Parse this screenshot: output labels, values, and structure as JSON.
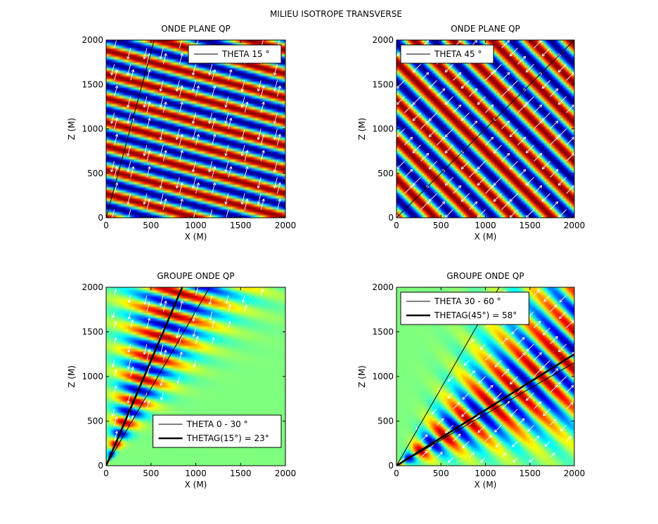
{
  "figure": {
    "suptitle": "MILIEU ISOTROPE TRANSVERSE"
  },
  "colormap": "jet",
  "chart_data": [
    {
      "type": "heatmap",
      "panel": "top-left",
      "title": "ONDE PLANE QP",
      "xlabel": "X (M)",
      "ylabel": "Z (M)",
      "xlim": [
        0,
        2000
      ],
      "ylim": [
        0,
        2000
      ],
      "xticks": [
        0,
        500,
        1000,
        1500,
        2000
      ],
      "yticks": [
        0,
        500,
        1000,
        1500,
        2000
      ],
      "field": {
        "kind": "plane",
        "theta_deg": 15,
        "wavelength": 260
      },
      "arrows": {
        "angle_deg": 75,
        "color": "#ffffff"
      },
      "lines": [
        {
          "theta_deg": 15,
          "width": 1
        }
      ],
      "legend": {
        "position": "top-right",
        "entries": [
          {
            "label": "THETA 15 °",
            "width": 1
          }
        ]
      }
    },
    {
      "type": "heatmap",
      "panel": "top-right",
      "title": "ONDE PLANE QP",
      "xlabel": "X (M)",
      "ylabel": "Z (M)",
      "xlim": [
        0,
        2000
      ],
      "ylim": [
        0,
        2000
      ],
      "xticks": [
        0,
        500,
        1000,
        1500,
        2000
      ],
      "yticks": [
        0,
        500,
        1000,
        1500,
        2000
      ],
      "field": {
        "kind": "plane",
        "theta_deg": 45,
        "wavelength": 310
      },
      "arrows": {
        "angle_deg": 45,
        "color": "#ffffff"
      },
      "lines": [
        {
          "theta_deg": 45,
          "width": 1
        }
      ],
      "legend": {
        "position": "top-left",
        "entries": [
          {
            "label": "THETA 45 °",
            "width": 1
          }
        ]
      }
    },
    {
      "type": "heatmap",
      "panel": "bottom-left",
      "title": "GROUPE ONDE QP",
      "xlabel": "X (M)",
      "ylabel": "Z (M)",
      "xlim": [
        0,
        2000
      ],
      "ylim": [
        0,
        2000
      ],
      "xticks": [
        0,
        500,
        1000,
        1500,
        2000
      ],
      "yticks": [
        0,
        500,
        1000,
        1500,
        2000
      ],
      "field": {
        "kind": "group",
        "theta_deg": 15,
        "wavelength": 260,
        "group_deg": 23,
        "spread_deg": 14
      },
      "arrows": {
        "angle_deg": 75,
        "color": "#ffffff"
      },
      "lines": [
        {
          "theta_deg": 0,
          "width": 1
        },
        {
          "theta_deg": 30,
          "width": 1
        },
        {
          "theta_deg": 23,
          "width": 2.5
        }
      ],
      "legend": {
        "position": "bottom-right",
        "entries": [
          {
            "label": "THETA 0 - 30 °",
            "width": 1
          },
          {
            "label": "THETAG(15°) = 23°",
            "width": 2.5
          }
        ]
      }
    },
    {
      "type": "heatmap",
      "panel": "bottom-right",
      "title": "GROUPE ONDE QP",
      "xlabel": "X (M)",
      "ylabel": "Z (M)",
      "xlim": [
        0,
        2000
      ],
      "ylim": [
        0,
        2000
      ],
      "xticks": [
        0,
        500,
        1000,
        1500,
        2000
      ],
      "yticks": [
        0,
        500,
        1000,
        1500,
        2000
      ],
      "field": {
        "kind": "group",
        "theta_deg": 45,
        "wavelength": 310,
        "group_deg": 58,
        "spread_deg": 20
      },
      "arrows": {
        "angle_deg": 45,
        "color": "#ffffff"
      },
      "lines": [
        {
          "theta_deg": 30,
          "width": 1
        },
        {
          "theta_deg": 60,
          "width": 1
        },
        {
          "theta_deg": 58,
          "width": 2.5
        }
      ],
      "legend": {
        "position": "top-left",
        "entries": [
          {
            "label": "THETA 30 - 60 °",
            "width": 1
          },
          {
            "label": "THETAG(45°) = 58°",
            "width": 2.5
          }
        ]
      }
    }
  ]
}
